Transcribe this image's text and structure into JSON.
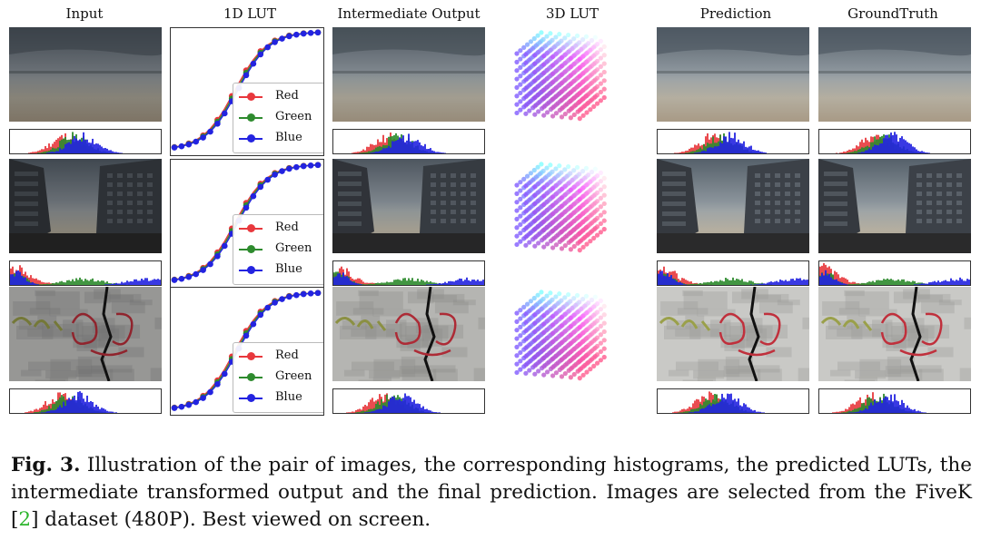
{
  "headers": {
    "input": "Input",
    "lut1d": "1D LUT",
    "intermediate": "Intermediate Output",
    "lut3d": "3D LUT",
    "prediction": "Prediction",
    "groundtruth": "GroundTruth"
  },
  "legend": [
    {
      "label": "Red",
      "color": "#e8383d"
    },
    {
      "label": "Green",
      "color": "#2e8b2e"
    },
    {
      "label": "Blue",
      "color": "#2323e0"
    }
  ],
  "rows": [
    {
      "scene": "beach"
    },
    {
      "scene": "street"
    },
    {
      "scene": "graffiti"
    }
  ],
  "caption": {
    "label": "Fig. 3.",
    "text_before": " Illustration of the pair of images, the corresponding histograms, the predicted LUTs, the intermediate transformed output and the final prediction. Images are selected from the FiveK [",
    "ref": "2",
    "text_after": "] dataset (480P). Best viewed on screen."
  }
}
